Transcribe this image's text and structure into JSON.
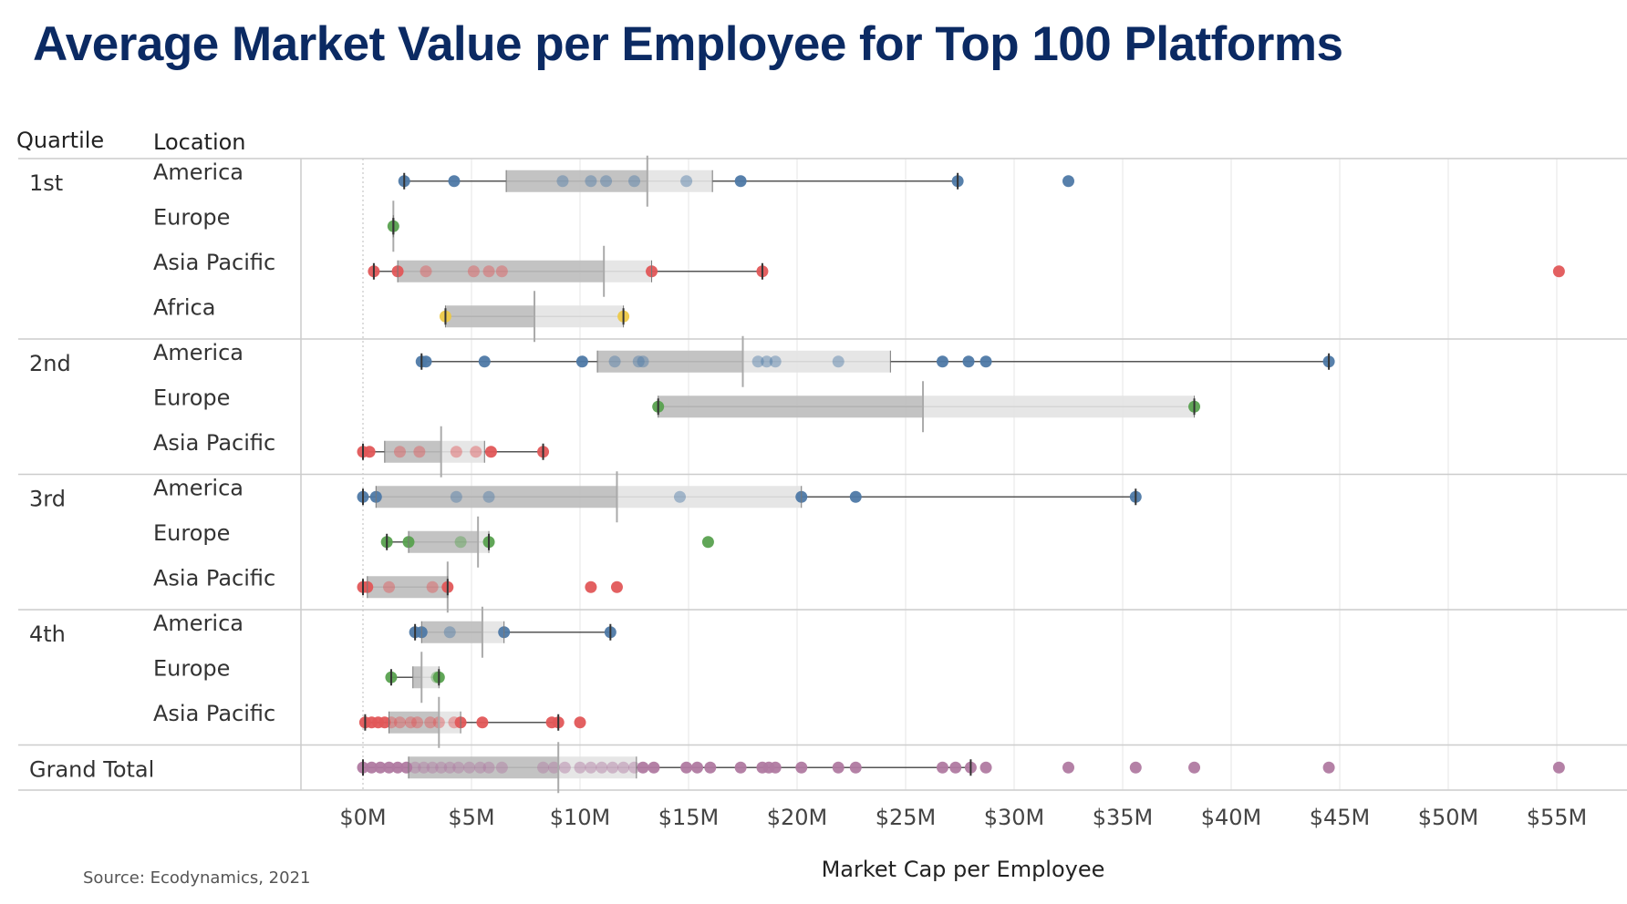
{
  "title": "Average Market Value per Employee for Top 100 Platforms",
  "source": "Source: Ecodynamics, 2021",
  "colors": {
    "title": "#0b2a63",
    "America": "#4e79a7",
    "Europe": "#59a14f",
    "Asia Pacific": "#e15759",
    "Africa": "#edc948",
    "Grand Total": "#b07aa1",
    "box_lower": "#bdbdbd",
    "box_upper": "#e3e3e3",
    "whisker": "#555555",
    "grid": "#e6e6e6",
    "separator": "#cccccc"
  },
  "chart_data": {
    "type": "boxplot",
    "xlabel": "Market Cap per Employee",
    "xlim": [
      -3,
      58
    ],
    "x_ticks": [
      0,
      5,
      10,
      15,
      20,
      25,
      30,
      35,
      40,
      45,
      50,
      55
    ],
    "x_tick_labels": [
      "$0M",
      "$5M",
      "$10M",
      "$15M",
      "$20M",
      "$25M",
      "$30M",
      "$35M",
      "$40M",
      "$45M",
      "$50M",
      "$55M"
    ],
    "column_headers": [
      "Quartile",
      "Location"
    ],
    "grid": true,
    "groups": [
      {
        "quartile": "1st",
        "rows": [
          {
            "location": "America",
            "q1": 6.6,
            "median": 13.1,
            "q3": 16.1,
            "whisker_low": 1.9,
            "whisker_high": 27.4,
            "points": [
              1.9,
              4.2,
              9.2,
              10.5,
              11.2,
              12.5,
              14.9,
              17.4,
              27.4,
              32.5
            ]
          },
          {
            "location": "Europe",
            "q1": 1.4,
            "median": 1.4,
            "q3": 1.4,
            "whisker_low": 1.4,
            "whisker_high": 1.4,
            "points": [
              1.4
            ]
          },
          {
            "location": "Asia Pacific",
            "q1": 1.6,
            "median": 11.1,
            "q3": 13.3,
            "whisker_low": 0.5,
            "whisker_high": 18.4,
            "points": [
              0.5,
              1.6,
              2.9,
              5.1,
              5.8,
              6.4,
              13.3,
              18.4,
              55.1
            ]
          },
          {
            "location": "Africa",
            "q1": 3.8,
            "median": 7.9,
            "q3": 12.0,
            "whisker_low": 3.8,
            "whisker_high": 12.0,
            "points": [
              3.8,
              12.0
            ]
          }
        ]
      },
      {
        "quartile": "2nd",
        "rows": [
          {
            "location": "America",
            "q1": 10.8,
            "median": 17.5,
            "q3": 24.3,
            "whisker_low": 2.7,
            "whisker_high": 44.5,
            "points": [
              2.7,
              2.9,
              5.6,
              10.1,
              11.6,
              12.7,
              12.9,
              18.2,
              18.6,
              19.0,
              21.9,
              26.7,
              27.9,
              28.7,
              44.5
            ]
          },
          {
            "location": "Europe",
            "q1": 13.6,
            "median": 25.8,
            "q3": 38.3,
            "whisker_low": 13.6,
            "whisker_high": 38.3,
            "points": [
              13.6,
              38.3
            ]
          },
          {
            "location": "Asia Pacific",
            "q1": 1.0,
            "median": 3.6,
            "q3": 5.6,
            "whisker_low": 0.0,
            "whisker_high": 8.3,
            "points": [
              0.0,
              0.3,
              1.7,
              2.6,
              4.3,
              5.2,
              5.9,
              8.3
            ]
          }
        ]
      },
      {
        "quartile": "3rd",
        "rows": [
          {
            "location": "America",
            "q1": 0.6,
            "median": 11.7,
            "q3": 20.2,
            "whisker_low": 0.0,
            "whisker_high": 35.6,
            "points": [
              0.0,
              0.6,
              4.3,
              5.8,
              14.6,
              20.2,
              22.7,
              35.6
            ]
          },
          {
            "location": "Europe",
            "q1": 2.1,
            "median": 5.3,
            "q3": 5.8,
            "whisker_low": 1.1,
            "whisker_high": 5.8,
            "points": [
              1.1,
              2.1,
              4.5,
              5.8,
              15.9
            ]
          },
          {
            "location": "Asia Pacific",
            "q1": 0.2,
            "median": 3.9,
            "q3": 3.9,
            "whisker_low": 0.0,
            "whisker_high": 3.9,
            "points": [
              0.0,
              0.2,
              1.2,
              3.2,
              3.9,
              10.5,
              11.7
            ]
          }
        ]
      },
      {
        "quartile": "4th",
        "rows": [
          {
            "location": "America",
            "q1": 2.7,
            "median": 5.5,
            "q3": 6.5,
            "whisker_low": 2.4,
            "whisker_high": 11.4,
            "points": [
              2.4,
              2.7,
              4.0,
              6.5,
              11.4
            ]
          },
          {
            "location": "Europe",
            "q1": 2.3,
            "median": 2.7,
            "q3": 3.5,
            "whisker_low": 1.3,
            "whisker_high": 3.5,
            "points": [
              1.3,
              3.4,
              3.5
            ]
          },
          {
            "location": "Asia Pacific",
            "q1": 1.2,
            "median": 3.5,
            "q3": 4.5,
            "whisker_low": 0.1,
            "whisker_high": 9.0,
            "points": [
              0.1,
              0.4,
              0.7,
              1.0,
              1.3,
              1.7,
              2.2,
              2.5,
              3.1,
              3.5,
              4.2,
              4.5,
              5.5,
              8.7,
              9.0,
              10.0
            ]
          }
        ]
      },
      {
        "quartile": "Grand Total",
        "rows": [
          {
            "location": "",
            "q1": 2.1,
            "median": 9.0,
            "q3": 12.6,
            "whisker_low": 0.0,
            "whisker_high": 28.0,
            "points": [
              0.0,
              0.4,
              0.8,
              1.2,
              1.6,
              2.0,
              2.4,
              2.8,
              3.2,
              3.6,
              4.0,
              4.4,
              4.9,
              5.4,
              5.8,
              6.4,
              8.3,
              8.8,
              9.3,
              10.0,
              10.5,
              11.0,
              11.5,
              12.0,
              12.5,
              12.9,
              13.4,
              14.9,
              15.4,
              16.0,
              17.4,
              18.4,
              18.7,
              19.0,
              20.2,
              21.9,
              22.7,
              26.7,
              27.3,
              28.0,
              28.7,
              32.5,
              35.6,
              38.3,
              44.5,
              55.1
            ]
          }
        ]
      }
    ]
  }
}
